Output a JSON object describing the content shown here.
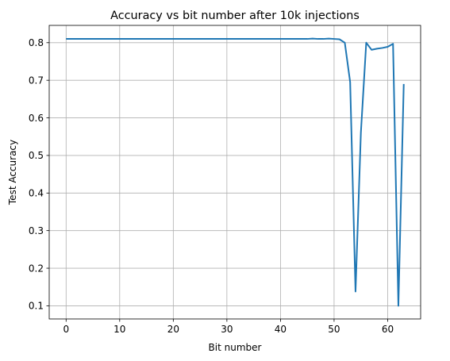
{
  "chart_data": {
    "type": "line",
    "title": "Accuracy vs bit number after 10k injections",
    "xlabel": "Bit number",
    "ylabel": "Test Accuracy",
    "xlim": [
      -3.15,
      66.15
    ],
    "ylim": [
      0.065,
      0.846
    ],
    "xticks": [
      0,
      10,
      20,
      30,
      40,
      50,
      60
    ],
    "yticks": [
      0.1,
      0.2,
      0.3,
      0.4,
      0.5,
      0.6,
      0.7,
      0.8
    ],
    "xtick_labels": [
      "0",
      "10",
      "20",
      "30",
      "40",
      "50",
      "60"
    ],
    "ytick_labels": [
      "0.1",
      "0.2",
      "0.3",
      "0.4",
      "0.5",
      "0.6",
      "0.7",
      "0.8"
    ],
    "grid": true,
    "series": [
      {
        "color": "#1f77b4",
        "x": [
          0,
          1,
          2,
          3,
          4,
          5,
          6,
          7,
          8,
          9,
          10,
          11,
          12,
          13,
          14,
          15,
          16,
          17,
          18,
          19,
          20,
          21,
          22,
          23,
          24,
          25,
          26,
          27,
          28,
          29,
          30,
          31,
          32,
          33,
          34,
          35,
          36,
          37,
          38,
          39,
          40,
          41,
          42,
          43,
          44,
          45,
          46,
          47,
          48,
          49,
          50,
          51,
          52,
          53,
          54,
          55,
          56,
          57,
          58,
          59,
          60,
          61,
          62,
          63
        ],
        "y": [
          0.81,
          0.81,
          0.81,
          0.81,
          0.81,
          0.81,
          0.81,
          0.81,
          0.81,
          0.81,
          0.81,
          0.81,
          0.81,
          0.81,
          0.81,
          0.81,
          0.81,
          0.81,
          0.81,
          0.81,
          0.81,
          0.81,
          0.81,
          0.81,
          0.81,
          0.81,
          0.81,
          0.81,
          0.81,
          0.81,
          0.81,
          0.81,
          0.81,
          0.81,
          0.81,
          0.81,
          0.81,
          0.81,
          0.81,
          0.81,
          0.81,
          0.81,
          0.81,
          0.81,
          0.81,
          0.81,
          0.811,
          0.81,
          0.81,
          0.811,
          0.81,
          0.809,
          0.8,
          0.695,
          0.138,
          0.56,
          0.8,
          0.781,
          0.784,
          0.786,
          0.789,
          0.797,
          0.1,
          0.69
        ]
      }
    ]
  }
}
